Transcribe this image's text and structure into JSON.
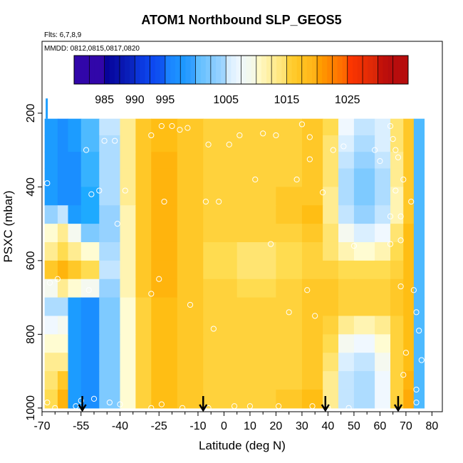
{
  "chart_data": {
    "type": "heatmap",
    "title": "ATOM1 Northbound SLP_GEOS5",
    "flights_note": "Flts: 6,7,8,9",
    "dates_note": "MMDD: 0812,0815,0817,0820",
    "xlabel": "Latitude (deg N)",
    "ylabel": "PSXC (mbar)",
    "xlim": [
      -70,
      84
    ],
    "ylim": [
      1010,
      5
    ],
    "x_ticks": [
      -70,
      -55,
      -40,
      -25,
      -10,
      0,
      10,
      20,
      30,
      40,
      50,
      60,
      70,
      80
    ],
    "x_tick_labels": [
      "-70",
      "-55",
      "-40",
      "-25",
      "-10",
      "0",
      "10",
      "20",
      "30",
      "40",
      "50",
      "60",
      "70",
      "80"
    ],
    "y_ticks": [
      200,
      400,
      600,
      800,
      1000
    ],
    "y_tick_labels": [
      "200",
      "400",
      "600",
      "800",
      "1000"
    ],
    "colorbar": {
      "label_values": [
        985,
        990,
        995,
        1005,
        1015,
        1025
      ],
      "labels": [
        "985",
        "990",
        "995",
        "1005",
        "1015",
        "1025"
      ],
      "boundaries": [
        980,
        985,
        990,
        995,
        1000,
        1005,
        1010,
        1015,
        1020,
        1025,
        1030,
        1035
      ],
      "colors": [
        "#7b10e0",
        "#0000a8",
        "#0018d8",
        "#1e78ff",
        "#6cc0ff",
        "#e6f4ff",
        "#fffacc",
        "#ffd040",
        "#ffa800",
        "#ff3000",
        "#d00000",
        "#a01010"
      ]
    },
    "profile_arrows_lat": [
      -54.5,
      -8,
      39,
      67
    ],
    "surface_pressure_field": {
      "lat_breaks": [
        -69,
        -64,
        -60,
        -55,
        -48,
        -40,
        -34,
        -28,
        -18,
        -8,
        5,
        20,
        30,
        38,
        44,
        50,
        58,
        64,
        69,
        73,
        77
      ],
      "p_breaks": [
        215,
        260,
        305,
        350,
        400,
        450,
        500,
        550,
        600,
        650,
        700,
        750,
        800,
        850,
        900,
        950,
        1000
      ],
      "values": [
        [
          997,
          996,
          997,
          1000,
          1005,
          1012,
          1016,
          1017,
          1016,
          1015,
          1015,
          1015,
          1016,
          1014,
          1007,
          1005,
          1006,
          1013,
          1016,
          1000
        ],
        [
          997,
          996,
          997,
          1000,
          1004,
          1012,
          1016,
          1017,
          1016,
          1015,
          1015,
          1015,
          1016,
          1013,
          1006,
          1004,
          1006,
          1013,
          1016,
          1000
        ],
        [
          997,
          996,
          996,
          999,
          1004,
          1012,
          1016,
          1018,
          1016,
          1015,
          1015,
          1015,
          1016,
          1013,
          1005,
          1003,
          1005,
          1012,
          1016,
          1000
        ],
        [
          997,
          996,
          996,
          999,
          1004,
          1012,
          1016,
          1018,
          1016,
          1015,
          1015,
          1015,
          1016,
          1013,
          1004,
          1002,
          1004,
          1012,
          1016,
          1000
        ],
        [
          997,
          996,
          996,
          998,
          1004,
          1012,
          1016,
          1018,
          1016,
          1015,
          1015,
          1016,
          1016,
          1012,
          1004,
          1002,
          1004,
          1011,
          1016,
          1000
        ],
        [
          1003,
          1005,
          997,
          998,
          1003,
          1011,
          1016,
          1018,
          1016,
          1015,
          1015,
          1016,
          1017,
          1012,
          1005,
          1003,
          1005,
          1011,
          1016,
          1000
        ],
        [
          1010,
          1012,
          1008,
          1002,
          1003,
          1011,
          1016,
          1018,
          1016,
          1015,
          1015,
          1015,
          1016,
          1013,
          1008,
          1006,
          1007,
          1013,
          1017,
          1000
        ],
        [
          1012,
          1014,
          1012,
          1010,
          1004,
          1011,
          1016,
          1018,
          1016,
          1014,
          1013,
          1014,
          1015,
          1013,
          1011,
          1010,
          1011,
          1014,
          1017,
          1000
        ],
        [
          1016,
          1018,
          1016,
          1014,
          1005,
          1011,
          1016,
          1018,
          1016,
          1014,
          1013,
          1014,
          1015,
          1015,
          1014,
          1014,
          1014,
          1015,
          1017,
          1000
        ],
        [
          1008,
          1012,
          1010,
          1008,
          1003,
          1011,
          1016,
          1018,
          1016,
          1015,
          1014,
          1015,
          1016,
          1016,
          1015,
          1015,
          1015,
          1016,
          1017,
          1000
        ],
        [
          1004,
          1004,
          997,
          996,
          1002,
          1010,
          1015,
          1017,
          1016,
          1015,
          1015,
          1015,
          1016,
          1016,
          1015,
          1015,
          1015,
          1016,
          1017,
          1000
        ],
        [
          1007,
          1008,
          997,
          996,
          1002,
          1010,
          1015,
          1017,
          1016,
          1015,
          1015,
          1015,
          1016,
          1015,
          1012,
          1011,
          1012,
          1015,
          1017,
          1000
        ],
        [
          1010,
          1010,
          997,
          996,
          1002,
          1010,
          1015,
          1017,
          1016,
          1015,
          1015,
          1015,
          1016,
          1014,
          1008,
          1007,
          1010,
          1015,
          1017,
          1000
        ],
        [
          1012,
          1012,
          997,
          996,
          1002,
          1010,
          1015,
          1017,
          1016,
          1015,
          1015,
          1015,
          1016,
          1013,
          1006,
          1005,
          1008,
          1015,
          1017,
          1000
        ],
        [
          1013,
          1016,
          997,
          996,
          1002,
          1010,
          1015,
          1017,
          1016,
          1015,
          1015,
          1015,
          1016,
          1012,
          1005,
          1004,
          1007,
          1015,
          1018,
          1000
        ],
        [
          1014,
          1018,
          997,
          996,
          1002,
          1010,
          1015,
          1017,
          1016,
          1015,
          1015,
          1016,
          1017,
          1012,
          1005,
          1004,
          1007,
          1015,
          1019,
          1000
        ]
      ]
    },
    "observation_points": [
      [
        -68,
        390
      ],
      [
        -67,
        660
      ],
      [
        -64,
        650
      ],
      [
        -68,
        985
      ],
      [
        -65,
        1000
      ],
      [
        -57,
        995
      ],
      [
        -55,
        980
      ],
      [
        -53,
        300
      ],
      [
        -52,
        680
      ],
      [
        -50,
        975
      ],
      [
        -51,
        420
      ],
      [
        -48,
        410
      ],
      [
        -46,
        275
      ],
      [
        -44,
        985
      ],
      [
        -42,
        275
      ],
      [
        -41,
        500
      ],
      [
        -40,
        990
      ],
      [
        -38,
        410
      ],
      [
        -28,
        260
      ],
      [
        -24,
        235
      ],
      [
        -20,
        235
      ],
      [
        -23,
        440
      ],
      [
        -25,
        650
      ],
      [
        -17,
        245
      ],
      [
        -14,
        240
      ],
      [
        -28,
        690
      ],
      [
        -28,
        1000
      ],
      [
        -24,
        990
      ],
      [
        -16,
        1000
      ],
      [
        -13,
        720
      ],
      [
        -7,
        440
      ],
      [
        -6,
        285
      ],
      [
        -4,
        785
      ],
      [
        -2,
        440
      ],
      [
        -6,
        1000
      ],
      [
        2,
        285
      ],
      [
        4,
        995
      ],
      [
        6,
        260
      ],
      [
        10,
        995
      ],
      [
        12,
        380
      ],
      [
        15,
        255
      ],
      [
        20,
        260
      ],
      [
        18,
        555
      ],
      [
        25,
        740
      ],
      [
        21,
        995
      ],
      [
        30,
        230
      ],
      [
        28,
        380
      ],
      [
        32,
        680
      ],
      [
        33,
        265
      ],
      [
        33,
        325
      ],
      [
        34,
        995
      ],
      [
        35,
        750
      ],
      [
        38,
        415
      ],
      [
        42,
        300
      ],
      [
        40,
        1000
      ],
      [
        46,
        290
      ],
      [
        48,
        1000
      ],
      [
        50,
        560
      ],
      [
        58,
        300
      ],
      [
        60,
        330
      ],
      [
        64,
        235
      ],
      [
        65,
        270
      ],
      [
        66,
        300
      ],
      [
        66,
        410
      ],
      [
        64,
        480
      ],
      [
        64,
        555
      ],
      [
        67,
        320
      ],
      [
        68,
        480
      ],
      [
        68,
        545
      ],
      [
        69,
        380
      ],
      [
        68,
        670
      ],
      [
        70,
        850
      ],
      [
        69,
        910
      ],
      [
        72,
        440
      ],
      [
        73,
        680
      ],
      [
        74,
        740
      ],
      [
        75,
        790
      ],
      [
        74,
        950
      ],
      [
        74,
        985
      ],
      [
        76,
        870
      ],
      [
        80,
        395
      ],
      [
        83,
        975
      ]
    ]
  }
}
